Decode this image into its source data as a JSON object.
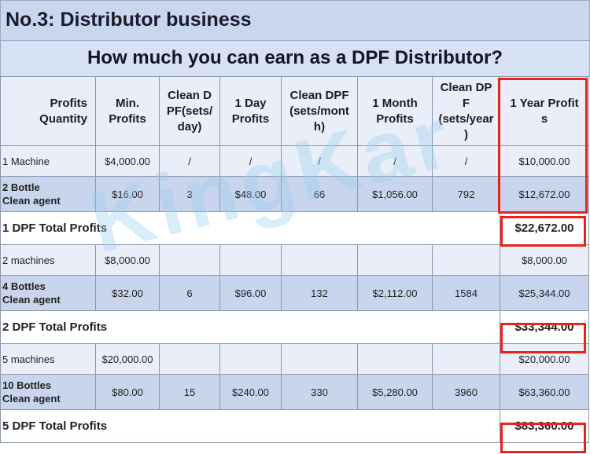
{
  "page": {
    "title": "No.3: Distributor business",
    "subtitle": "How much you can earn as a DPF Distributor?",
    "watermark": "KingKar"
  },
  "table": {
    "headers": [
      "Profits\nQuantity",
      "Min.\nProfits",
      "Clean D\nPF(sets/\nday)",
      "1 Day\nProfits",
      "Clean  DPF\n(sets/mont\nh)",
      "1 Month\nProfits",
      "Clean DP\nF\n(sets/year\n)",
      "1 Year Profit\ns"
    ],
    "rows": [
      [
        "1 Machine",
        "$4,000.00",
        "/",
        "/",
        "/",
        "/",
        "/",
        "$10,000.00"
      ],
      [
        "2 Bottle\nClean agent",
        "$16.00",
        "3",
        "$48.00",
        "66",
        "$1,056.00",
        "792",
        "$12,672.00"
      ],
      [
        "1 DPF Total Profits",
        "$22,672.00"
      ],
      [
        "2 machines",
        "$8,000.00",
        "",
        "",
        "",
        "",
        "",
        "$8,000.00"
      ],
      [
        "4 Bottles\nClean agent",
        "$32.00",
        "6",
        "$96.00",
        "132",
        "$2,112.00",
        "1584",
        "$25,344.00"
      ],
      [
        "2 DPF Total Profits",
        "$33,344.00"
      ],
      [
        "5 machines",
        "$20,000.00",
        "",
        "",
        "",
        "",
        "",
        "$20,000.00"
      ],
      [
        "10 Bottles\nClean agent",
        "$80.00",
        "15",
        "$240.00",
        "330",
        "$5,280.00",
        "3960",
        "$63,360.00"
      ],
      [
        "5 DPF Total Profits",
        "$83,360.00"
      ]
    ]
  },
  "colors": {
    "highlight": "#e8231c",
    "header_bg": "#c8d6ee",
    "row_blue": "#c8d5ec",
    "row_light": "#e9eef8"
  }
}
